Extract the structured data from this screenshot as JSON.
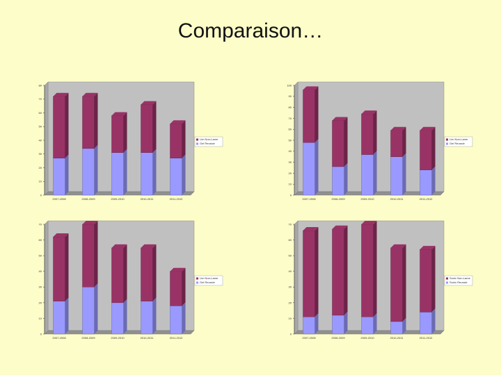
{
  "slide": {
    "title": "Comparaison…"
  },
  "colors": {
    "top": "#993366",
    "bottom": "#9999ff",
    "plot_bg": "#c0c0c0",
    "page_bg": "#fdfdc9"
  },
  "chart_data": [
    {
      "type": "bar",
      "stacked": true,
      "categories": [
        "2007-2008",
        "2008-2009",
        "2009-2010",
        "2010-2011",
        "2011-2012"
      ],
      "series": [
        {
          "name": "Gel Reussie",
          "values": [
            27,
            34,
            31,
            31,
            27
          ]
        },
        {
          "name": "Lim Non-Lame",
          "values": [
            45,
            38,
            27,
            35,
            25
          ]
        }
      ],
      "ylim": [
        0,
        80
      ],
      "yticks": [
        "0",
        "10",
        "20",
        "30",
        "40",
        "50",
        "60",
        "70",
        "80"
      ],
      "legend": "right",
      "grid": false
    },
    {
      "type": "bar",
      "stacked": true,
      "categories": [
        "2007-2008",
        "2008-2009",
        "2009-2010",
        "2010-2011",
        "2011-2012"
      ],
      "series": [
        {
          "name": "Gel Reussie",
          "values": [
            48,
            26,
            37,
            35,
            23
          ]
        },
        {
          "name": "Lim Non-Lame",
          "values": [
            48,
            42,
            37,
            24,
            36
          ]
        }
      ],
      "ylim": [
        0,
        100
      ],
      "yticks": [
        "0",
        "10",
        "20",
        "30",
        "40",
        "50",
        "60",
        "70",
        "80",
        "90",
        "100"
      ],
      "legend": "right",
      "grid": false
    },
    {
      "type": "bar",
      "stacked": true,
      "categories": [
        "2007-2008",
        "2008-2009",
        "2009-2010",
        "2010-2011",
        "2011-2012"
      ],
      "series": [
        {
          "name": "Gel Reussie",
          "values": [
            21,
            30,
            20,
            21,
            18
          ]
        },
        {
          "name": "Lim Non-Lame",
          "values": [
            41,
            40,
            35,
            34,
            22
          ]
        }
      ],
      "ylim": [
        0,
        70
      ],
      "yticks": [
        "0",
        "10",
        "20",
        "30",
        "40",
        "50",
        "60",
        "70"
      ],
      "legend": "right",
      "grid": false
    },
    {
      "type": "bar",
      "stacked": true,
      "categories": [
        "2007-2008",
        "2008-2009",
        "2009-2010",
        "2010-2011",
        "2011-2012"
      ],
      "series": [
        {
          "name": "Sonic Reussie",
          "values": [
            11,
            12,
            11,
            8,
            14
          ]
        },
        {
          "name": "Sonic Non-Lame",
          "values": [
            55,
            55,
            59,
            47,
            40
          ]
        }
      ],
      "ylim": [
        0,
        70
      ],
      "yticks": [
        "0",
        "10",
        "20",
        "30",
        "40",
        "50",
        "60",
        "70"
      ],
      "legend": "right",
      "grid": false
    }
  ]
}
